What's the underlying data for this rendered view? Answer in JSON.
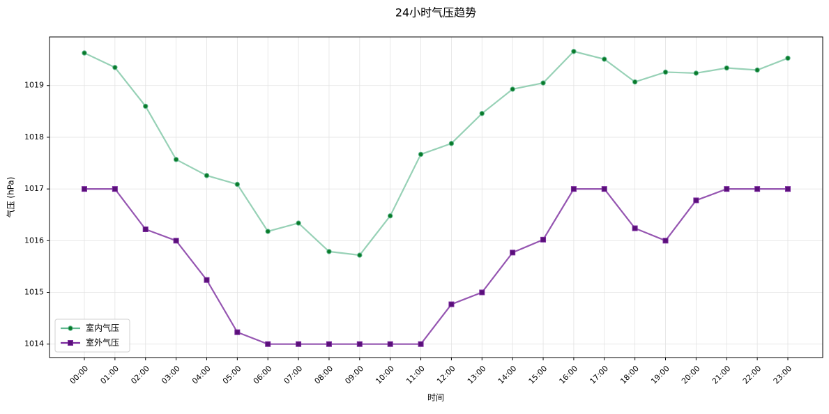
{
  "chart_data": {
    "type": "line",
    "title": "24小时气压趋势",
    "x_label": "时间",
    "y_label": "气压 (hPa)",
    "categories": [
      "00:00",
      "01:00",
      "02:00",
      "03:00",
      "04:00",
      "05:00",
      "06:00",
      "07:00",
      "08:00",
      "09:00",
      "10:00",
      "11:00",
      "12:00",
      "13:00",
      "14:00",
      "15:00",
      "16:00",
      "17:00",
      "18:00",
      "19:00",
      "20:00",
      "21:00",
      "22:00",
      "23:00"
    ],
    "series": [
      {
        "name": "室内气压",
        "color": "#5fb88f",
        "marker_color": "#0a7a2a",
        "marker": "circle",
        "values": [
          1019.63,
          1019.35,
          1018.6,
          1017.57,
          1017.26,
          1017.09,
          1016.18,
          1016.34,
          1015.79,
          1015.72,
          1016.48,
          1017.67,
          1017.88,
          1018.46,
          1018.93,
          1019.05,
          1019.66,
          1019.51,
          1019.07,
          1019.26,
          1019.24,
          1019.34,
          1019.3,
          1019.53
        ]
      },
      {
        "name": "室外气压",
        "color": "#7b2a9e",
        "marker_color": "#5a0f7a",
        "marker": "square",
        "values": [
          1017.0,
          1017.0,
          1016.22,
          1016.0,
          1015.24,
          1014.23,
          1014.0,
          1014.0,
          1014.0,
          1014.0,
          1014.0,
          1014.0,
          1014.77,
          1015.0,
          1015.77,
          1016.02,
          1017.0,
          1017.0,
          1016.24,
          1016.0,
          1016.78,
          1017.0,
          1017.0,
          1017.0
        ]
      }
    ],
    "ylim": [
      1013.74,
      1019.94
    ],
    "yticks": [
      1014,
      1015,
      1016,
      1017,
      1018,
      1019
    ],
    "grid": true,
    "legend": "lower left"
  }
}
